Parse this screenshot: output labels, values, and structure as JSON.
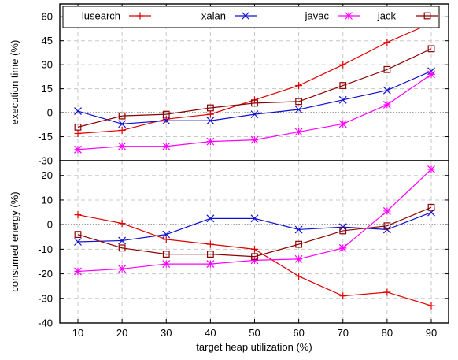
{
  "chart_data": {
    "type": "line",
    "x": [
      10,
      20,
      30,
      40,
      50,
      60,
      70,
      80,
      90
    ],
    "xlabel": "target heap utilization (%)",
    "xticks": [
      "10",
      "20",
      "30",
      "40",
      "50",
      "60",
      "70",
      "80",
      "90"
    ],
    "legend": {
      "position": "top"
    },
    "panels": [
      {
        "name": "top",
        "ylabel": "execution time (%)",
        "ylim": [
          -30,
          68
        ],
        "yticks": [
          -30,
          -15,
          0,
          15,
          30,
          45,
          60
        ],
        "series": [
          {
            "name": "lusearch",
            "color": "#e00000",
            "marker": "plus",
            "values": [
              -13,
              -11,
              -4,
              -1,
              8,
              17,
              30,
              44,
              56
            ]
          },
          {
            "name": "xalan",
            "color": "#1010d0",
            "marker": "x",
            "values": [
              1,
              -7,
              -5,
              -5,
              -1,
              2,
              8,
              14,
              26
            ]
          },
          {
            "name": "javac",
            "color": "#ff00ff",
            "marker": "star",
            "values": [
              -23,
              -21,
              -21,
              -18,
              -17,
              -12,
              -7,
              5,
              24
            ]
          },
          {
            "name": "jack",
            "color": "#8b0000",
            "marker": "square",
            "values": [
              -9,
              -2,
              -1,
              3,
              6,
              7,
              17,
              27,
              40
            ]
          }
        ]
      },
      {
        "name": "bottom",
        "ylabel": "consumed energy (%)",
        "ylim": [
          -40,
          26
        ],
        "yticks": [
          -40,
          -30,
          -20,
          -10,
          0,
          10,
          20
        ],
        "series": [
          {
            "name": "lusearch",
            "color": "#e00000",
            "marker": "plus",
            "values": [
              4,
              0.5,
              -6,
              -8,
              -10,
              -21,
              -29,
              -27.5,
              -33
            ]
          },
          {
            "name": "xalan",
            "color": "#1010d0",
            "marker": "x",
            "values": [
              -7,
              -6.5,
              -4,
              2.5,
              2.5,
              -2,
              -1,
              -2,
              5
            ]
          },
          {
            "name": "javac",
            "color": "#ff00ff",
            "marker": "star",
            "values": [
              -19,
              -18,
              -16,
              -16,
              -14.5,
              -14,
              -9.5,
              5.5,
              22.5
            ]
          },
          {
            "name": "jack",
            "color": "#8b0000",
            "marker": "square",
            "values": [
              -4,
              -9.5,
              -12,
              -12,
              -13,
              -8,
              -2.5,
              -0.5,
              7
            ]
          }
        ]
      }
    ]
  }
}
